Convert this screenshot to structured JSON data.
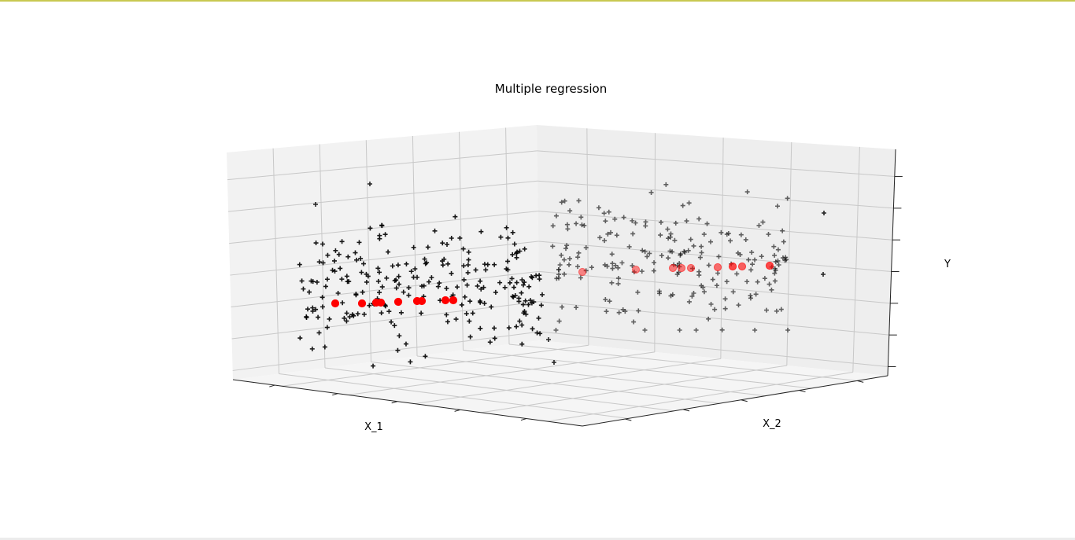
{
  "window": {
    "accent_line_color": "#c8c850"
  },
  "chart_data": {
    "type": "scatter",
    "title": "Multiple regression",
    "xlabel": "X_1",
    "ylabel": "X_2",
    "zlabel": "Y",
    "grid": true,
    "projection": "3d",
    "series": [
      {
        "marker": "plus",
        "color": "#000000"
      },
      {
        "marker": "circle",
        "color": "#ff0000"
      }
    ]
  }
}
